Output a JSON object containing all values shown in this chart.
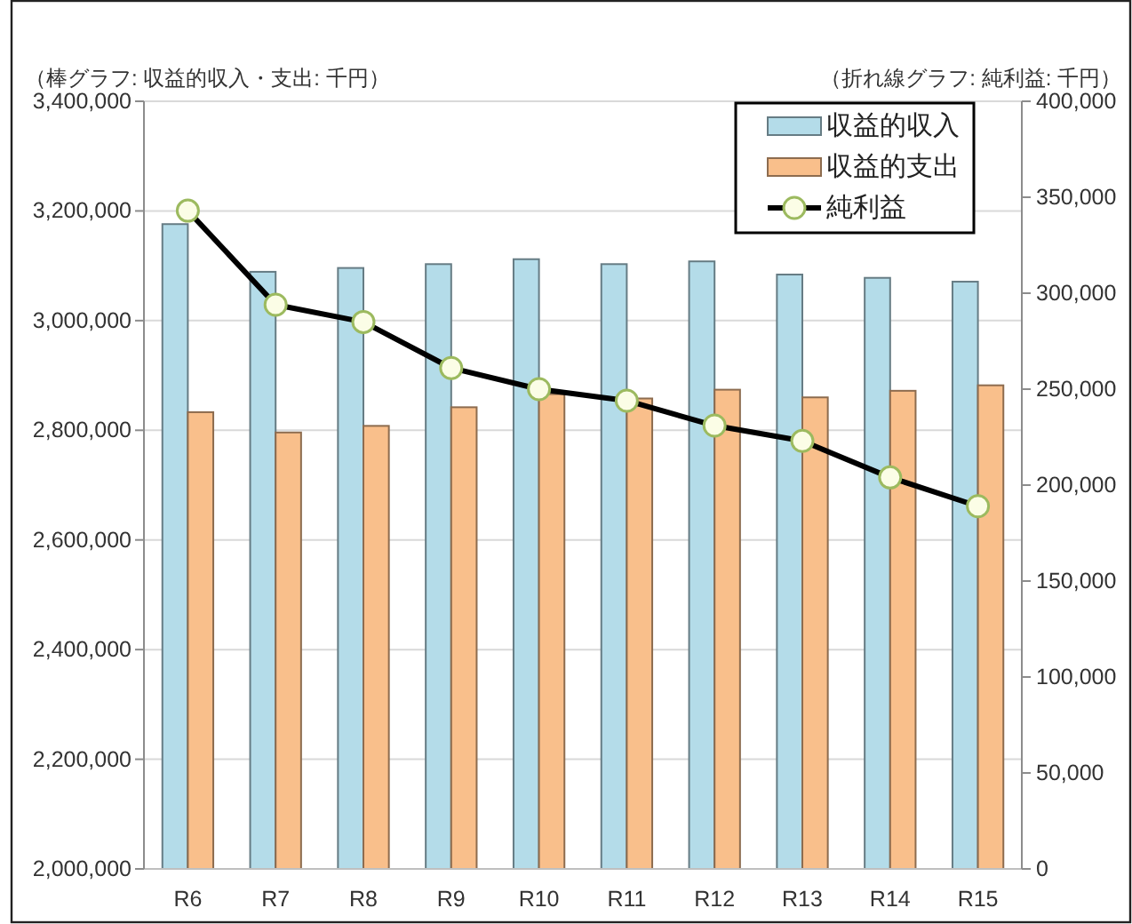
{
  "chart_data": {
    "type": "bar",
    "ylabel": "（棒グラフ: 収益的収入・支出: 千円）",
    "y2label": "（折れ線グラフ: 純利益: 千円）",
    "categories": [
      "R6",
      "R7",
      "R8",
      "R9",
      "R10",
      "R11",
      "R12",
      "R13",
      "R14",
      "R15"
    ],
    "series": [
      {
        "name": "収益的収入",
        "color": "#b4dce9",
        "values": [
          3176000,
          3089000,
          3096000,
          3103000,
          3112000,
          3103000,
          3108000,
          3084000,
          3078000,
          3071000
        ]
      },
      {
        "name": "収益的支出",
        "color": "#f9bf8b",
        "values": [
          2833000,
          2796000,
          2808000,
          2842000,
          2866000,
          2858000,
          2874000,
          2860000,
          2872000,
          2882000
        ]
      },
      {
        "name": "純利益",
        "type": "line",
        "axis": "y2",
        "color": "#000000",
        "values": [
          343000,
          294000,
          285000,
          261000,
          250000,
          244000,
          231000,
          223000,
          204000,
          189000
        ]
      }
    ],
    "ylim": [
      2000000,
      3400000
    ],
    "yticks": [
      {
        "value": 2000000,
        "label": "2,000,000"
      },
      {
        "value": 2200000,
        "label": "2,200,000"
      },
      {
        "value": 2400000,
        "label": "2,400,000"
      },
      {
        "value": 2600000,
        "label": "2,600,000"
      },
      {
        "value": 2800000,
        "label": "2,800,000"
      },
      {
        "value": 3000000,
        "label": "3,000,000"
      },
      {
        "value": 3200000,
        "label": "3,200,000"
      },
      {
        "value": 3400000,
        "label": "3,400,000"
      }
    ],
    "y2lim": [
      0,
      400000
    ],
    "y2ticks": [
      0,
      {
        "value": 50000,
        "label": "50,000"
      },
      {
        "value": 100000,
        "label": "100,000"
      },
      {
        "value": 150000,
        "label": "150,000"
      },
      {
        "value": 200000,
        "label": "200,000"
      },
      {
        "value": 250000,
        "label": "250,000"
      },
      {
        "value": 300000,
        "label": "300,000"
      },
      {
        "value": 350000,
        "label": "350,000"
      },
      {
        "value": 400000,
        "label": "400,000"
      }
    ],
    "grid": "y",
    "legend": "top right",
    "marker": "circle",
    "line_style": "solid"
  }
}
